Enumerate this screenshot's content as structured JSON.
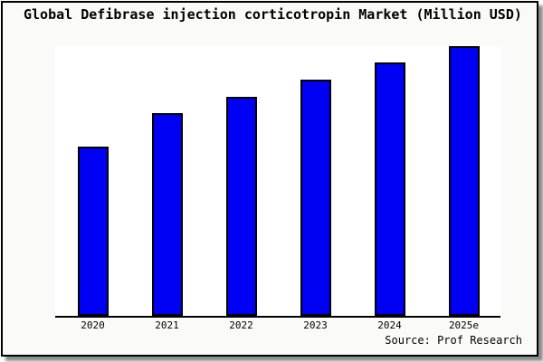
{
  "window": {
    "background_color": "#fafaf9",
    "border_color": "#000000",
    "shadow_color": "#999999"
  },
  "chart_data": {
    "type": "bar",
    "title": "Global Defibrase injection corticotropin Market (Million USD)",
    "categories": [
      "2020",
      "2021",
      "2022",
      "2023",
      "2024",
      "2025e"
    ],
    "values": [
      62.7,
      75.0,
      81.3,
      87.6,
      93.8,
      100
    ],
    "value_scale": "percent of tallest bar; chart displays no numeric y-axis labels",
    "ylim": [
      0,
      100
    ],
    "xlabel": "",
    "ylabel": "",
    "grid": false,
    "legend": "none",
    "y_axis_visible": false,
    "x_axis_line_color": "#000000",
    "plot_background": "#ffffff",
    "bar_color": "#0000f5",
    "bar_border_color": "#000000",
    "source_note": "Source: Prof Research"
  }
}
